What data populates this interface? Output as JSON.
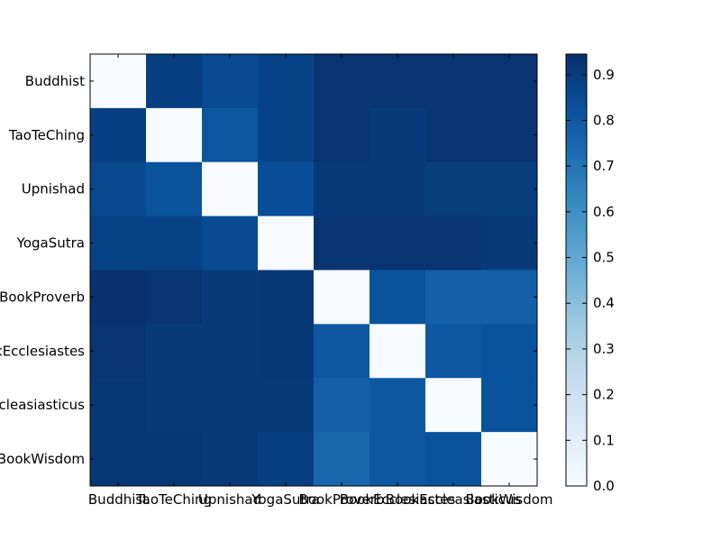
{
  "chart_data": {
    "type": "heatmap",
    "title": "",
    "xlabel": "",
    "ylabel": "",
    "rows": [
      "Buddhist",
      "TaoTeChing",
      "Upnishad",
      "YogaSutra",
      "BookProverb",
      "BookEcclesiastes",
      "BookEccleasiasticus",
      "BookWisdom"
    ],
    "columns": [
      "Buddhist",
      "TaoTeChing",
      "Upnishad",
      "YogaSutra",
      "BookProverb",
      "BookEcclesiastes",
      "BookEccleasiasticus",
      "BookWisdom"
    ],
    "values": [
      [
        0.0,
        0.89,
        0.85,
        0.88,
        0.93,
        0.93,
        0.93,
        0.93
      ],
      [
        0.89,
        0.0,
        0.81,
        0.88,
        0.93,
        0.91,
        0.93,
        0.93
      ],
      [
        0.86,
        0.82,
        0.0,
        0.84,
        0.91,
        0.91,
        0.9,
        0.9
      ],
      [
        0.88,
        0.88,
        0.85,
        0.0,
        0.93,
        0.93,
        0.93,
        0.91
      ],
      [
        0.94,
        0.93,
        0.91,
        0.92,
        0.0,
        0.82,
        0.77,
        0.77
      ],
      [
        0.93,
        0.91,
        0.91,
        0.92,
        0.8,
        0.0,
        0.8,
        0.82
      ],
      [
        0.92,
        0.91,
        0.91,
        0.91,
        0.77,
        0.8,
        0.0,
        0.82
      ],
      [
        0.92,
        0.92,
        0.91,
        0.89,
        0.75,
        0.8,
        0.82,
        0.0
      ]
    ],
    "value_range": [
      0.0,
      0.945
    ],
    "colormap": "Blues",
    "colorbar": {
      "position": "right",
      "ticks": [
        "0.0",
        "0.1",
        "0.2",
        "0.3",
        "0.4",
        "0.5",
        "0.6",
        "0.7",
        "0.8",
        "0.9"
      ]
    },
    "grid": false
  }
}
